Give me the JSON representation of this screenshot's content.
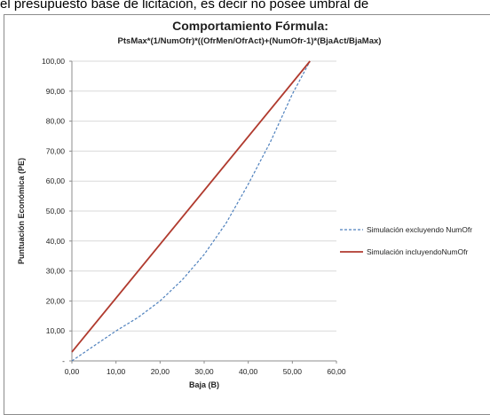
{
  "document": {
    "text_above": "el presupuesto base de licitación, es decir no posee  umbral de"
  },
  "chart_data": {
    "type": "line",
    "title": "Comportamiento Fórmula:",
    "subtitle": "PtsMax*(1/NumOfr)*((OfrMen/OfrAct)+(NumOfr-1)*(BjaAct/BjaMax)",
    "xlabel": "Baja (B)",
    "ylabel": "Puntuación Económica (PE)",
    "xlim": [
      0,
      60
    ],
    "ylim": [
      0,
      100
    ],
    "x_ticks": [
      "0,00",
      "10,00",
      "20,00",
      "30,00",
      "40,00",
      "50,00",
      "60,00"
    ],
    "y_ticks": [
      "-",
      "10,00",
      "20,00",
      "30,00",
      "40,00",
      "50,00",
      "60,00",
      "70,00",
      "80,00",
      "90,00",
      "100,00"
    ],
    "grid": "horizontal",
    "legend_position": "right",
    "series": [
      {
        "name": "Simulación excluyendo NumOfr",
        "color": "#4f81bd",
        "style": "dashed",
        "x": [
          0,
          5,
          10,
          15,
          20,
          25,
          30,
          35,
          40,
          45,
          50,
          54
        ],
        "y": [
          0,
          5,
          10,
          14.5,
          20,
          27,
          35.5,
          46,
          59,
          73,
          89,
          100
        ]
      },
      {
        "name": "Simulación incluyendoNumOfr",
        "color": "#b03a2e",
        "style": "solid",
        "x": [
          0,
          54
        ],
        "y": [
          3,
          100
        ]
      }
    ]
  }
}
